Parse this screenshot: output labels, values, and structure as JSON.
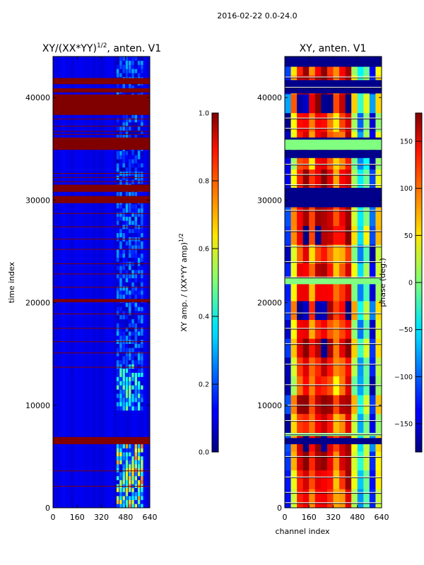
{
  "figure": {
    "suptitle": "2016-02-22 0.0-24.0",
    "xlabel": "channel index",
    "ylabel": "time index"
  },
  "chart_data": [
    {
      "id": "amp",
      "type": "heatmap",
      "title_prefix": "XY/(XX*YY)",
      "title_exp": "1/2",
      "title_suffix": ", anten. V1",
      "x_ticks": [
        0,
        160,
        320,
        480,
        640
      ],
      "x_tick_labels": [
        "0",
        "160",
        "320",
        "480",
        "640"
      ],
      "xlim": [
        0,
        640
      ],
      "y_ticks": [
        0,
        10000,
        20000,
        30000,
        40000
      ],
      "y_tick_labels": [
        "0",
        "10000",
        "20000",
        "30000",
        "40000"
      ],
      "ylim": [
        0,
        44000
      ],
      "colorbar": {
        "label_prefix": "XY amp. / (XX*YY amp)",
        "label_exp": "1/2",
        "range": [
          0.0,
          1.0
        ],
        "ticks": [
          0.0,
          0.2,
          0.4,
          0.6,
          0.8,
          1.0
        ],
        "tick_labels": [
          "0.0",
          "0.2",
          "0.4",
          "0.6",
          "0.8",
          "1.0"
        ]
      },
      "background_value": 0.1,
      "bands": [
        {
          "y0": 41300,
          "y1": 41900,
          "v": 1.0
        },
        {
          "y0": 40500,
          "y1": 40900,
          "v": 1.0
        },
        {
          "y0": 38300,
          "y1": 40300,
          "v": 1.0
        },
        {
          "y0": 34900,
          "y1": 36100,
          "v": 1.0
        },
        {
          "y0": 30800,
          "y1": 31500,
          "v": 1.0
        },
        {
          "y0": 29700,
          "y1": 30400,
          "v": 1.0
        },
        {
          "y0": 20050,
          "y1": 20350,
          "v": 1.0
        },
        {
          "y0": 6200,
          "y1": 6900,
          "v": 1.0
        }
      ],
      "lines_y": [
        37900,
        37200,
        36700,
        36400,
        32600,
        32200,
        31800,
        28700,
        27400,
        26200,
        25200,
        23800,
        22800,
        21500,
        18900,
        17500,
        16200,
        15100,
        13700,
        3600,
        2100
      ],
      "lines_value": 1.0,
      "hot_regions": [
        {
          "x0": 420,
          "x1": 600,
          "y0": 0,
          "y1": 6200,
          "v": 0.45
        },
        {
          "x0": 420,
          "x1": 600,
          "y0": 9500,
          "y1": 14000,
          "v": 0.3
        },
        {
          "x0": 420,
          "x1": 600,
          "y0": 14000,
          "y1": 44000,
          "v": 0.18
        }
      ]
    },
    {
      "id": "phase",
      "type": "heatmap",
      "title": "XY, anten. V1",
      "x_ticks": [
        0,
        160,
        320,
        480,
        640
      ],
      "x_tick_labels": [
        "0",
        "160",
        "320",
        "480",
        "640"
      ],
      "xlim": [
        0,
        640
      ],
      "y_ticks": [
        0,
        10000,
        20000,
        30000,
        40000
      ],
      "y_tick_labels": [
        "0",
        "10000",
        "20000",
        "30000",
        "40000"
      ],
      "ylim": [
        0,
        44000
      ],
      "colorbar": {
        "label": "phase (deg.)",
        "range": [
          -180,
          180
        ],
        "ticks": [
          -150,
          -100,
          -50,
          0,
          50,
          100,
          150
        ],
        "tick_labels": [
          "−150",
          "−100",
          "−50",
          "0",
          "50",
          "100",
          "150"
        ]
      },
      "profile_x": [
        0,
        40,
        80,
        120,
        160,
        200,
        240,
        280,
        320,
        360,
        400,
        440,
        480,
        520,
        560,
        600,
        640
      ],
      "profile_deg": [
        -130,
        60,
        140,
        160,
        100,
        150,
        160,
        130,
        90,
        120,
        160,
        30,
        -60,
        10,
        -120,
        40,
        -20
      ],
      "dark_bands": [
        {
          "y0": 43000,
          "y1": 44000
        },
        {
          "y0": 40400,
          "y1": 41700
        },
        {
          "y0": 35600,
          "y1": 36100
        },
        {
          "y0": 34100,
          "y1": 34900
        },
        {
          "y0": 29300,
          "y1": 31200
        },
        {
          "y0": 6200,
          "y1": 6800
        }
      ],
      "green_bands": [
        {
          "y0": 34900,
          "y1": 35900,
          "deg": 0
        },
        {
          "y0": 21800,
          "y1": 22400,
          "deg": 0
        },
        {
          "y0": 7000,
          "y1": 7300,
          "deg": 0
        }
      ],
      "white_lines_y": [
        42000,
        41000,
        38000,
        37000,
        33500,
        32500,
        31500,
        29000,
        27000,
        25500,
        24000,
        22500,
        19000,
        17500,
        16000,
        14000,
        12000,
        10000,
        8500,
        7200,
        5000,
        3000,
        1500,
        500
      ]
    }
  ]
}
